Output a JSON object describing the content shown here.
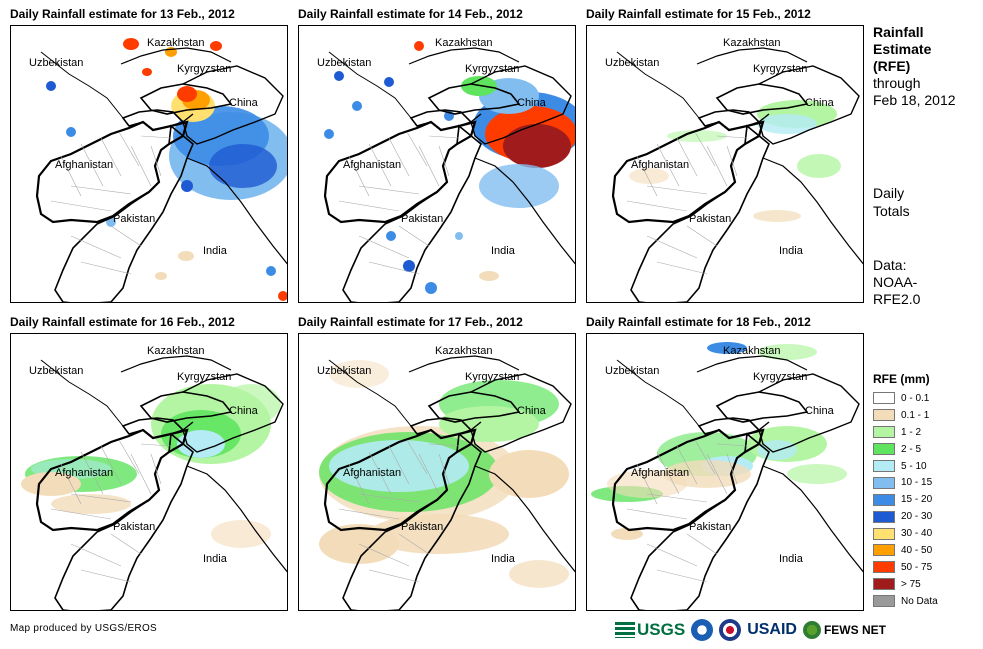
{
  "panels": [
    {
      "title": "Daily Rainfall estimate for 13 Feb., 2012",
      "day": 13
    },
    {
      "title": "Daily Rainfall estimate for 14 Feb., 2012",
      "day": 14
    },
    {
      "title": "Daily Rainfall estimate for 15 Feb., 2012",
      "day": 15
    },
    {
      "title": "Daily Rainfall estimate for 16 Feb., 2012",
      "day": 16
    },
    {
      "title": "Daily Rainfall estimate for 17 Feb., 2012",
      "day": 17
    },
    {
      "title": "Daily Rainfall estimate for 18 Feb., 2012",
      "day": 18
    }
  ],
  "map_labels": {
    "kazakhstan": "Kazakhstan",
    "uzbekistan": "Uzbekistan",
    "kyrgyzstan": "Kyrgyzstan",
    "china": "China",
    "afghanistan": "Afghanistan",
    "pakistan": "Pakistan",
    "india": "India"
  },
  "sidebar": {
    "title_line1": "Rainfall",
    "title_line2": "Estimate",
    "title_line3": "(RFE)",
    "through": "through",
    "date": "Feb 18, 2012",
    "daily1": "Daily",
    "daily2": "Totals",
    "data1": "Data:",
    "data2": "NOAA-",
    "data3": "RFE2.0"
  },
  "legend": {
    "title": "RFE (mm)",
    "items": [
      {
        "label": "0 - 0.1",
        "color": "#ffffff"
      },
      {
        "label": "0.1 - 1",
        "color": "#f3dcb9"
      },
      {
        "label": "1 - 2",
        "color": "#b4f5a3"
      },
      {
        "label": "2 - 5",
        "color": "#5fe45f"
      },
      {
        "label": "5 - 10",
        "color": "#b4ebf5"
      },
      {
        "label": "10 - 15",
        "color": "#82bdf0"
      },
      {
        "label": "15 - 20",
        "color": "#3c8ce6"
      },
      {
        "label": "20 - 30",
        "color": "#1e5ad2"
      },
      {
        "label": "30 - 40",
        "color": "#ffe070"
      },
      {
        "label": "40 - 50",
        "color": "#ff9f00"
      },
      {
        "label": "50 - 75",
        "color": "#ff3c00"
      },
      {
        "label": "> 75",
        "color": "#a01c1c"
      },
      {
        "label": "No Data",
        "color": "#9a9a9a"
      }
    ]
  },
  "credit": "Map produced by USGS/EROS",
  "logos": {
    "usgs": "USGS",
    "usaid": "USAID",
    "fews": "FEWS NET"
  }
}
